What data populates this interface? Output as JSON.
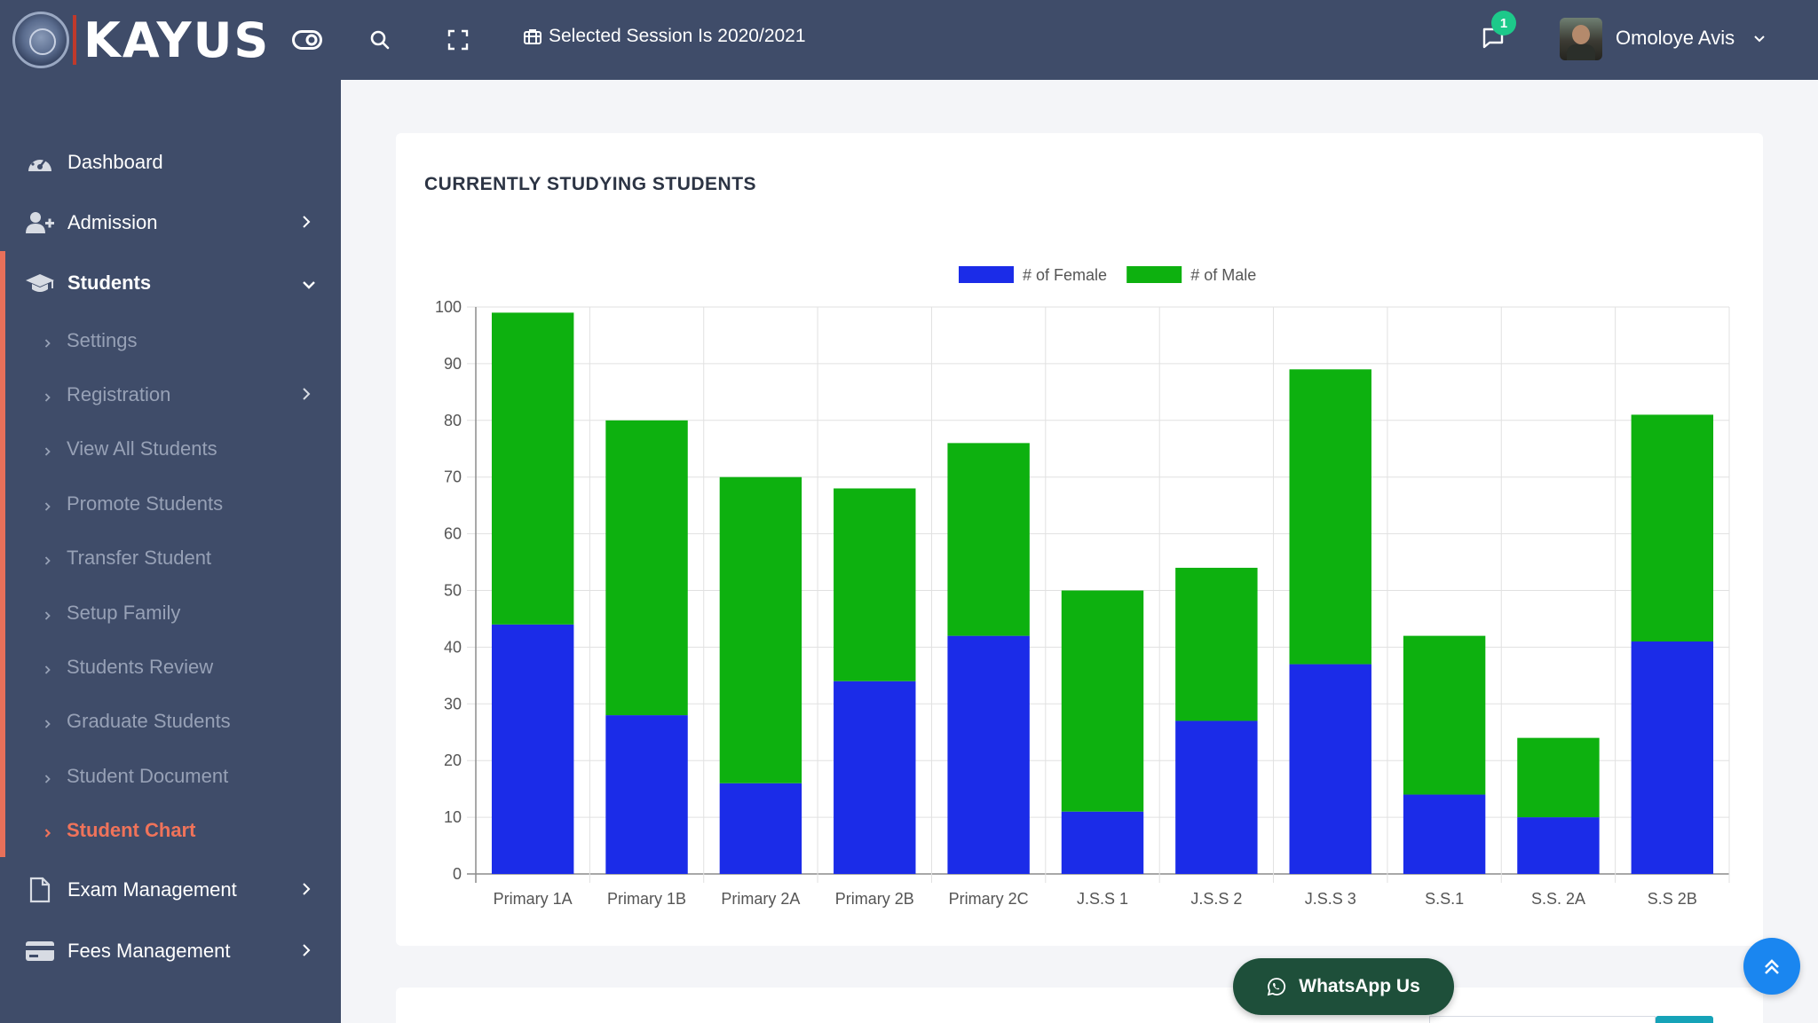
{
  "brand": {
    "name": "KAYUS"
  },
  "header": {
    "session_label": "Selected Session Is 2020/2021",
    "notification_count": "1",
    "user_name": "Omoloye Avis"
  },
  "sidebar": {
    "items": [
      {
        "label": "Dashboard",
        "icon": "dashboard-icon"
      },
      {
        "label": "Admission",
        "icon": "user-plus-icon"
      },
      {
        "label": "Students",
        "icon": "graduation-cap-icon"
      }
    ],
    "student_subitems": [
      {
        "label": "Settings"
      },
      {
        "label": "Registration"
      },
      {
        "label": "View All Students"
      },
      {
        "label": "Promote Students"
      },
      {
        "label": "Transfer Student"
      },
      {
        "label": "Setup Family"
      },
      {
        "label": "Students Review"
      },
      {
        "label": "Graduate Students"
      },
      {
        "label": "Student Document"
      },
      {
        "label": "Student Chart"
      }
    ],
    "bottom_items": [
      {
        "label": "Exam Management",
        "icon": "document-icon"
      },
      {
        "label": "Fees Management",
        "icon": "credit-card-icon"
      }
    ]
  },
  "card": {
    "title": "CURRENTLY STUDYING STUDENTS"
  },
  "chart_data": {
    "type": "bar",
    "stacked": true,
    "title": "CURRENTLY STUDYING STUDENTS",
    "categories": [
      "Primary 1A",
      "Primary 1B",
      "Primary 2A",
      "Primary 2B",
      "Primary 2C",
      "J.S.S 1",
      "J.S.S 2",
      "J.S.S 3",
      "S.S.1",
      "S.S. 2A",
      "S.S 2B"
    ],
    "series": [
      {
        "name": "# of Female",
        "color": "#1b2ce8",
        "values": [
          44,
          28,
          16,
          34,
          42,
          11,
          27,
          37,
          14,
          10,
          41
        ]
      },
      {
        "name": "# of Male",
        "color": "#0db10f",
        "values": [
          55,
          52,
          54,
          34,
          34,
          39,
          27,
          52,
          28,
          14,
          40
        ]
      }
    ],
    "ylim": [
      0,
      100
    ],
    "yticks": [
      0,
      10,
      20,
      30,
      40,
      50,
      60,
      70,
      80,
      90,
      100
    ],
    "grid": true,
    "legend": "top-center",
    "xlabel": "",
    "ylabel": ""
  },
  "floating": {
    "whatsapp_label": "WhatsApp Us"
  }
}
